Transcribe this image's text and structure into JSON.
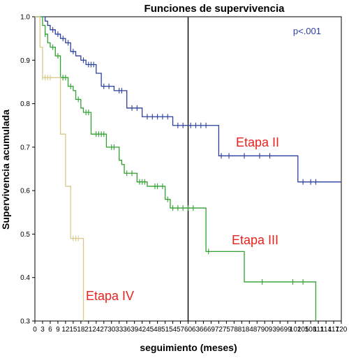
{
  "chart_data": {
    "type": "line",
    "title": "Funciones de supervivencia",
    "xlabel": "seguimiento (meses)",
    "ylabel": "Supervivencia acumulada",
    "xlim": [
      0,
      120
    ],
    "ylim": [
      0.3,
      1.0
    ],
    "x_ticks": [
      "0",
      "3",
      "6",
      "9",
      "12",
      "15",
      "18",
      "21",
      "24",
      "27",
      "30",
      "33",
      "36",
      "39",
      "42",
      "45",
      "48",
      "51",
      "54",
      "57",
      "60",
      "63",
      "66",
      "69",
      "72",
      "75",
      "78",
      "81",
      "84",
      "87",
      "90",
      "93",
      "96",
      "99",
      "102",
      "105",
      "108",
      "111",
      "114",
      "117",
      "120"
    ],
    "y_ticks": [
      "0.3",
      "0.4",
      "0.5",
      "0.6",
      "0.7",
      "0.8",
      "0.9",
      "1.0"
    ],
    "reference_line_x": 60,
    "annotation": "p<.001",
    "colors": {
      "etapa_ii": "#2b3f9e",
      "etapa_iii": "#2ea12e",
      "etapa_iv": "#d8c98a",
      "labels": "#e8231e",
      "pvalue": "#2b3f9e"
    },
    "series": [
      {
        "name": "Etapa II",
        "steps": [
          [
            0,
            1.0
          ],
          [
            4,
            0.99
          ],
          [
            5,
            0.98
          ],
          [
            6,
            0.97
          ],
          [
            8,
            0.96
          ],
          [
            10,
            0.95
          ],
          [
            12,
            0.94
          ],
          [
            14,
            0.92
          ],
          [
            16,
            0.91
          ],
          [
            18,
            0.9
          ],
          [
            20,
            0.89
          ],
          [
            24,
            0.87
          ],
          [
            26,
            0.84
          ],
          [
            31,
            0.83
          ],
          [
            36,
            0.79
          ],
          [
            42,
            0.77
          ],
          [
            54,
            0.75
          ],
          [
            72,
            0.68
          ],
          [
            103,
            0.62
          ],
          [
            120,
            0.62
          ]
        ],
        "censored": [
          [
            7,
            0.97
          ],
          [
            9,
            0.96
          ],
          [
            11,
            0.95
          ],
          [
            13,
            0.94
          ],
          [
            15,
            0.92
          ],
          [
            19,
            0.9
          ],
          [
            21,
            0.89
          ],
          [
            22,
            0.89
          ],
          [
            23,
            0.89
          ],
          [
            27,
            0.84
          ],
          [
            29,
            0.84
          ],
          [
            33,
            0.83
          ],
          [
            34,
            0.83
          ],
          [
            38,
            0.79
          ],
          [
            40,
            0.79
          ],
          [
            44,
            0.77
          ],
          [
            46,
            0.77
          ],
          [
            48,
            0.77
          ],
          [
            50,
            0.77
          ],
          [
            52,
            0.77
          ],
          [
            56,
            0.75
          ],
          [
            58,
            0.75
          ],
          [
            61,
            0.75
          ],
          [
            63,
            0.75
          ],
          [
            65,
            0.75
          ],
          [
            67,
            0.75
          ],
          [
            73,
            0.68
          ],
          [
            76,
            0.68
          ],
          [
            82,
            0.68
          ],
          [
            88,
            0.68
          ],
          [
            92,
            0.68
          ],
          [
            105,
            0.62
          ],
          [
            108,
            0.62
          ],
          [
            110,
            0.62
          ]
        ]
      },
      {
        "name": "Etapa III",
        "steps": [
          [
            0,
            1.0
          ],
          [
            3,
            0.98
          ],
          [
            4,
            0.96
          ],
          [
            5,
            0.94
          ],
          [
            6,
            0.93
          ],
          [
            8,
            0.91
          ],
          [
            10,
            0.86
          ],
          [
            13,
            0.84
          ],
          [
            15,
            0.83
          ],
          [
            16,
            0.81
          ],
          [
            18,
            0.79
          ],
          [
            19,
            0.78
          ],
          [
            22,
            0.73
          ],
          [
            28,
            0.7
          ],
          [
            33,
            0.67
          ],
          [
            34,
            0.66
          ],
          [
            35,
            0.64
          ],
          [
            40,
            0.62
          ],
          [
            44,
            0.61
          ],
          [
            51,
            0.58
          ],
          [
            53,
            0.56
          ],
          [
            67,
            0.46
          ],
          [
            82,
            0.39
          ],
          [
            110,
            0.3
          ]
        ],
        "censored": [
          [
            4,
            0.96
          ],
          [
            7,
            0.93
          ],
          [
            9,
            0.91
          ],
          [
            11,
            0.86
          ],
          [
            12,
            0.86
          ],
          [
            14,
            0.84
          ],
          [
            17,
            0.81
          ],
          [
            20,
            0.78
          ],
          [
            21,
            0.78
          ],
          [
            24,
            0.73
          ],
          [
            25,
            0.73
          ],
          [
            26,
            0.73
          ],
          [
            27,
            0.73
          ],
          [
            30,
            0.7
          ],
          [
            31,
            0.7
          ],
          [
            36,
            0.64
          ],
          [
            38,
            0.64
          ],
          [
            41,
            0.62
          ],
          [
            42,
            0.62
          ],
          [
            43,
            0.62
          ],
          [
            47,
            0.61
          ],
          [
            48,
            0.61
          ],
          [
            50,
            0.61
          ],
          [
            52,
            0.58
          ],
          [
            54,
            0.56
          ],
          [
            56,
            0.56
          ],
          [
            58,
            0.56
          ],
          [
            60,
            0.56
          ],
          [
            62,
            0.56
          ],
          [
            68,
            0.46
          ],
          [
            89,
            0.39
          ],
          [
            101,
            0.39
          ],
          [
            105,
            0.39
          ]
        ]
      },
      {
        "name": "Etapa IV",
        "steps": [
          [
            0,
            1.0
          ],
          [
            2,
            0.93
          ],
          [
            3,
            0.86
          ],
          [
            10,
            0.73
          ],
          [
            12,
            0.61
          ],
          [
            14,
            0.49
          ],
          [
            19,
            0.49
          ],
          [
            19,
            0.3
          ]
        ],
        "censored": [
          [
            3,
            0.86
          ],
          [
            4,
            0.86
          ],
          [
            5,
            0.86
          ],
          [
            6,
            0.86
          ],
          [
            15,
            0.49
          ],
          [
            16,
            0.49
          ],
          [
            17,
            0.49
          ]
        ]
      }
    ]
  }
}
